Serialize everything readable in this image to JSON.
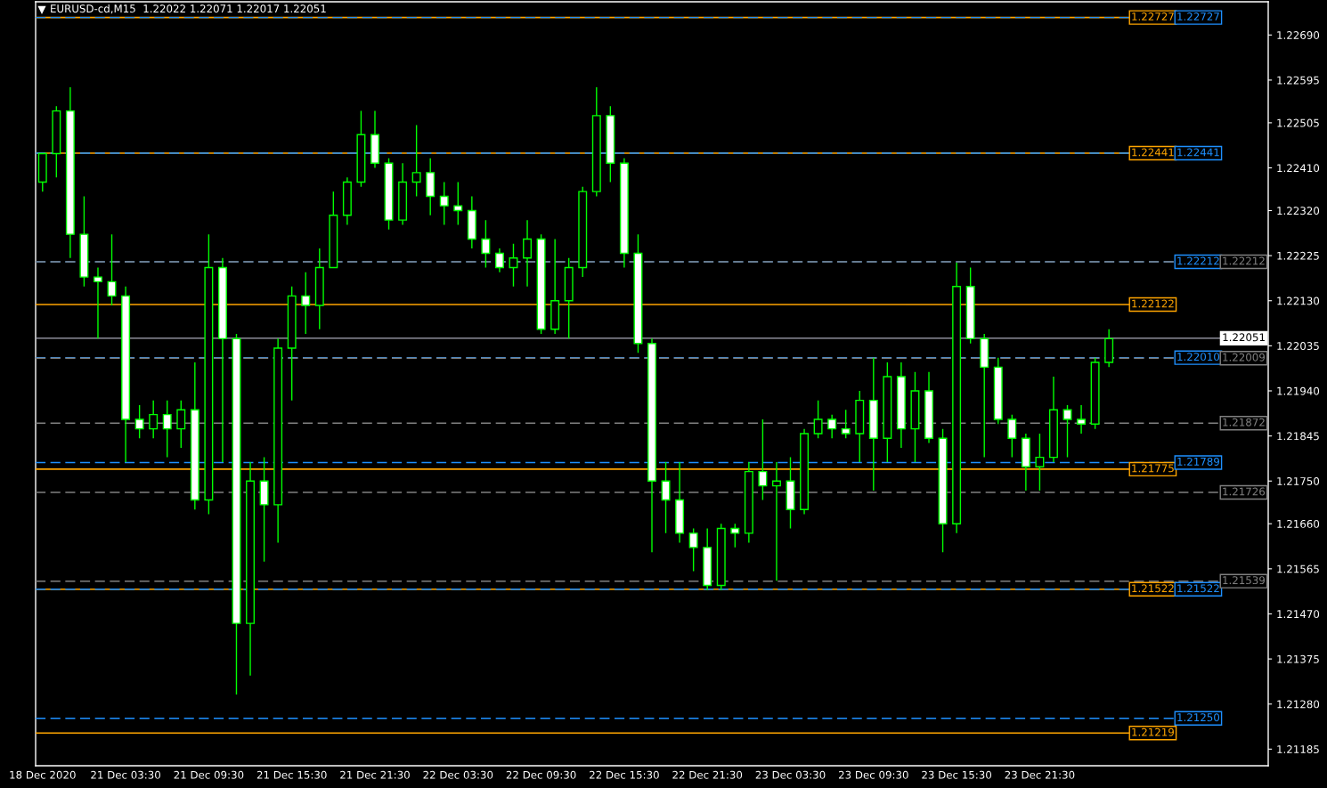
{
  "chart_data": {
    "type": "candlestick",
    "title": "EURUSD-cd,M15  1.22022 1.22071 1.22017 1.22051",
    "color": "#00ff00",
    "categories": [
      "18 Dec 2020",
      null,
      null,
      null,
      null,
      null,
      "21 Dec 03:30",
      null,
      null,
      null,
      null,
      null,
      "21 Dec 09:30",
      null,
      null,
      null,
      null,
      null,
      "21 Dec 15:30",
      null,
      null,
      null,
      null,
      null,
      "21 Dec 21:30",
      null,
      null,
      null,
      null,
      null,
      "22 Dec 03:30",
      null,
      null,
      null,
      null,
      null,
      "22 Dec 09:30",
      null,
      null,
      null,
      null,
      null,
      "22 Dec 15:30",
      null,
      null,
      null,
      null,
      null,
      "22 Dec 21:30",
      null,
      null,
      null,
      null,
      null,
      "23 Dec 03:30",
      null,
      null,
      null,
      null,
      null,
      "23 Dec 09:30",
      null,
      null,
      null,
      null,
      null,
      "23 Dec 15:30",
      null,
      null,
      null,
      null,
      null,
      "23 Dec 21:30",
      null,
      null,
      null,
      null,
      null,
      null,
      null,
      null,
      null,
      null,
      null,
      null,
      null,
      null,
      null,
      null
    ],
    "ohlc": [
      [
        1.2238,
        1.2244,
        1.2236,
        1.2244
      ],
      [
        1.2244,
        1.2254,
        1.2239,
        1.2253
      ],
      [
        1.2253,
        1.2258,
        1.2222,
        1.2227
      ],
      [
        1.2227,
        1.2235,
        1.2216,
        1.2218
      ],
      [
        1.2218,
        1.222,
        1.2205,
        1.2217
      ],
      [
        1.2217,
        1.2227,
        1.2212,
        1.2214
      ],
      [
        1.2214,
        1.2216,
        1.2179,
        1.2188
      ],
      [
        1.2188,
        1.2191,
        1.2184,
        1.2186
      ],
      [
        1.2186,
        1.2192,
        1.2184,
        1.2189
      ],
      [
        1.2189,
        1.2192,
        1.218,
        1.2186
      ],
      [
        1.2186,
        1.2192,
        1.2182,
        1.219
      ],
      [
        1.219,
        1.22,
        1.2169,
        1.2171
      ],
      [
        1.2171,
        1.2227,
        1.2168,
        1.222
      ],
      [
        1.222,
        1.2222,
        1.2179,
        1.2205
      ],
      [
        1.2205,
        1.2206,
        1.213,
        1.2145
      ],
      [
        1.2145,
        1.2179,
        1.2134,
        1.2175
      ],
      [
        1.2175,
        1.218,
        1.2158,
        1.217
      ],
      [
        1.217,
        1.2205,
        1.2162,
        1.2203
      ],
      [
        1.2203,
        1.2216,
        1.2192,
        1.2214
      ],
      [
        1.2214,
        1.2219,
        1.2206,
        1.2212
      ],
      [
        1.2212,
        1.2224,
        1.2207,
        1.222
      ],
      [
        1.222,
        1.2236,
        1.222,
        1.2231
      ],
      [
        1.2231,
        1.2239,
        1.2229,
        1.2238
      ],
      [
        1.2238,
        1.2253,
        1.2237,
        1.2248
      ],
      [
        1.2248,
        1.2253,
        1.2241,
        1.2242
      ],
      [
        1.2242,
        1.2243,
        1.2228,
        1.223
      ],
      [
        1.223,
        1.2242,
        1.2229,
        1.2238
      ],
      [
        1.2238,
        1.225,
        1.2235,
        1.224
      ],
      [
        1.224,
        1.2243,
        1.2231,
        1.2235
      ],
      [
        1.2235,
        1.2238,
        1.2229,
        1.2233
      ],
      [
        1.2233,
        1.2238,
        1.2229,
        1.2232
      ],
      [
        1.2232,
        1.2235,
        1.2224,
        1.2226
      ],
      [
        1.2226,
        1.223,
        1.222,
        1.2223
      ],
      [
        1.2223,
        1.2224,
        1.2219,
        1.222
      ],
      [
        1.222,
        1.2225,
        1.2216,
        1.2222
      ],
      [
        1.2222,
        1.223,
        1.2216,
        1.2226
      ],
      [
        1.2226,
        1.2227,
        1.2206,
        1.2207
      ],
      [
        1.2207,
        1.2226,
        1.2206,
        1.2213
      ],
      [
        1.2213,
        1.2222,
        1.2205,
        1.222
      ],
      [
        1.222,
        1.2237,
        1.2218,
        1.2236
      ],
      [
        1.2236,
        1.2258,
        1.2235,
        1.2252
      ],
      [
        1.2252,
        1.2254,
        1.2238,
        1.2242
      ],
      [
        1.2242,
        1.2243,
        1.222,
        1.2223
      ],
      [
        1.2223,
        1.2227,
        1.2202,
        1.2204
      ],
      [
        1.2204,
        1.2205,
        1.216,
        1.2175
      ],
      [
        1.2175,
        1.2179,
        1.2164,
        1.2171
      ],
      [
        1.2171,
        1.2179,
        1.2162,
        1.2164
      ],
      [
        1.2164,
        1.2165,
        1.2156,
        1.2161
      ],
      [
        1.2161,
        1.2165,
        1.2152,
        1.2153
      ],
      [
        1.2153,
        1.2166,
        1.2152,
        1.2165
      ],
      [
        1.2165,
        1.2166,
        1.2161,
        1.2164
      ],
      [
        1.2164,
        1.2179,
        1.2162,
        1.2177
      ],
      [
        1.2177,
        1.2188,
        1.2171,
        1.2174
      ],
      [
        1.2174,
        1.2179,
        1.2154,
        1.2175
      ],
      [
        1.2175,
        1.218,
        1.2165,
        1.2169
      ],
      [
        1.2169,
        1.2186,
        1.2168,
        1.2185
      ],
      [
        1.2185,
        1.2192,
        1.2184,
        1.2188
      ],
      [
        1.2188,
        1.2189,
        1.2184,
        1.2186
      ],
      [
        1.2186,
        1.219,
        1.2184,
        1.2185
      ],
      [
        1.2185,
        1.2194,
        1.2179,
        1.2192
      ],
      [
        1.2192,
        1.2201,
        1.2173,
        1.2184
      ],
      [
        1.2184,
        1.22,
        1.2179,
        1.2197
      ],
      [
        1.2197,
        1.22,
        1.2182,
        1.2186
      ],
      [
        1.2186,
        1.2198,
        1.2179,
        1.2194
      ],
      [
        1.2194,
        1.2198,
        1.2183,
        1.2184
      ],
      [
        1.2184,
        1.2186,
        1.216,
        1.2166
      ],
      [
        1.2166,
        1.2221,
        1.2164,
        1.2216
      ],
      [
        1.2216,
        1.222,
        1.2204,
        1.2205
      ],
      [
        1.2205,
        1.2206,
        1.218,
        1.2199
      ],
      [
        1.2199,
        1.2201,
        1.2187,
        1.2188
      ],
      [
        1.2188,
        1.2189,
        1.218,
        1.2184
      ],
      [
        1.2184,
        1.2185,
        1.2173,
        1.2178
      ],
      [
        1.2178,
        1.2185,
        1.2173,
        1.218
      ],
      [
        1.218,
        1.2197,
        1.2179,
        1.219
      ],
      [
        1.219,
        1.2191,
        1.218,
        1.2188
      ],
      [
        1.2188,
        1.2191,
        1.2185,
        1.2187
      ],
      [
        1.2187,
        1.2201,
        1.2186,
        1.22
      ],
      [
        1.22,
        1.2207,
        1.2199,
        1.2205
      ],
      null,
      null,
      null,
      null,
      null,
      null,
      null,
      null,
      null,
      null,
      null
    ],
    "ylim": [
      1.2115,
      1.2276
    ],
    "yticks": [
      {
        "value": 1.2269,
        "label": "1.22690"
      },
      {
        "value": 1.22595,
        "label": "1.22595"
      },
      {
        "value": 1.22505,
        "label": "1.22505"
      },
      {
        "value": 1.2241,
        "label": "1.22410"
      },
      {
        "value": 1.2232,
        "label": "1.22320"
      },
      {
        "value": 1.22225,
        "label": "1.22225"
      },
      {
        "value": 1.2213,
        "label": "1.22130"
      },
      {
        "value": 1.22035,
        "label": "1.22035"
      },
      {
        "value": 1.2194,
        "label": "1.21940"
      },
      {
        "value": 1.21845,
        "label": "1.21845"
      },
      {
        "value": 1.2175,
        "label": "1.21750"
      },
      {
        "value": 1.2166,
        "label": "1.21660"
      },
      {
        "value": 1.21565,
        "label": "1.21565"
      },
      {
        "value": 1.2147,
        "label": "1.21470"
      },
      {
        "value": 1.21375,
        "label": "1.21375"
      },
      {
        "value": 1.2128,
        "label": "1.21280"
      },
      {
        "value": 1.21185,
        "label": "1.21185"
      }
    ],
    "ref_lines": [
      {
        "axis": "y",
        "value": 1.22727,
        "label": "1.22727",
        "color": "#ffa500",
        "line_style": "solid"
      },
      {
        "axis": "y",
        "value": 1.22441,
        "label": "1.22441",
        "color": "#ffa500",
        "line_style": "solid"
      },
      {
        "axis": "y",
        "value": 1.22122,
        "label": "1.22122",
        "color": "#ffa500",
        "line_style": "solid"
      },
      {
        "axis": "y",
        "value": 1.21775,
        "label": "1.21775",
        "color": "#ffa500",
        "line_style": "solid"
      },
      {
        "axis": "y",
        "value": 1.21522,
        "label": "1.21522",
        "color": "#ffa500",
        "line_style": "solid"
      },
      {
        "axis": "y",
        "value": 1.21219,
        "label": "1.21219",
        "color": "#ffa500",
        "line_style": "solid"
      },
      {
        "axis": "y",
        "value": 1.22727,
        "label": "1.22727",
        "color": "#1e90ff",
        "line_style": "dashed"
      },
      {
        "axis": "y",
        "value": 1.22441,
        "label": "1.22441",
        "color": "#1e90ff",
        "line_style": "dashed"
      },
      {
        "axis": "y",
        "value": 1.22212,
        "label": "1.22212",
        "color": "#1e90ff",
        "line_style": "dashed"
      },
      {
        "axis": "y",
        "value": 1.2201,
        "label": "1.22010",
        "color": "#1e90ff",
        "line_style": "dashed"
      },
      {
        "axis": "y",
        "value": 1.21789,
        "label": "1.21789",
        "color": "#1e90ff",
        "line_style": "dashed"
      },
      {
        "axis": "y",
        "value": 1.21522,
        "label": "1.21522",
        "color": "#1e90ff",
        "line_style": "dashed"
      },
      {
        "axis": "y",
        "value": 1.2125,
        "label": "1.21250",
        "color": "#1e90ff",
        "line_style": "dashed"
      },
      {
        "axis": "y",
        "value": 1.22212,
        "label": "1.22212",
        "color": "#808080",
        "line_style": "dashed"
      },
      {
        "axis": "y",
        "value": 1.22009,
        "label": "1.22009",
        "color": "#808080",
        "line_style": "dashed"
      },
      {
        "axis": "y",
        "value": 1.21872,
        "label": "1.21872",
        "color": "#808080",
        "line_style": "dashed"
      },
      {
        "axis": "y",
        "value": 1.21726,
        "label": "1.21726",
        "color": "#808080",
        "line_style": "dashed"
      },
      {
        "axis": "y",
        "value": 1.21539,
        "label": "1.21539",
        "color": "#808080",
        "line_style": "dashed"
      },
      {
        "axis": "y",
        "value": 1.22051,
        "label": "1.22051",
        "color": "#a9a9b8",
        "line_style": "solid"
      }
    ]
  }
}
